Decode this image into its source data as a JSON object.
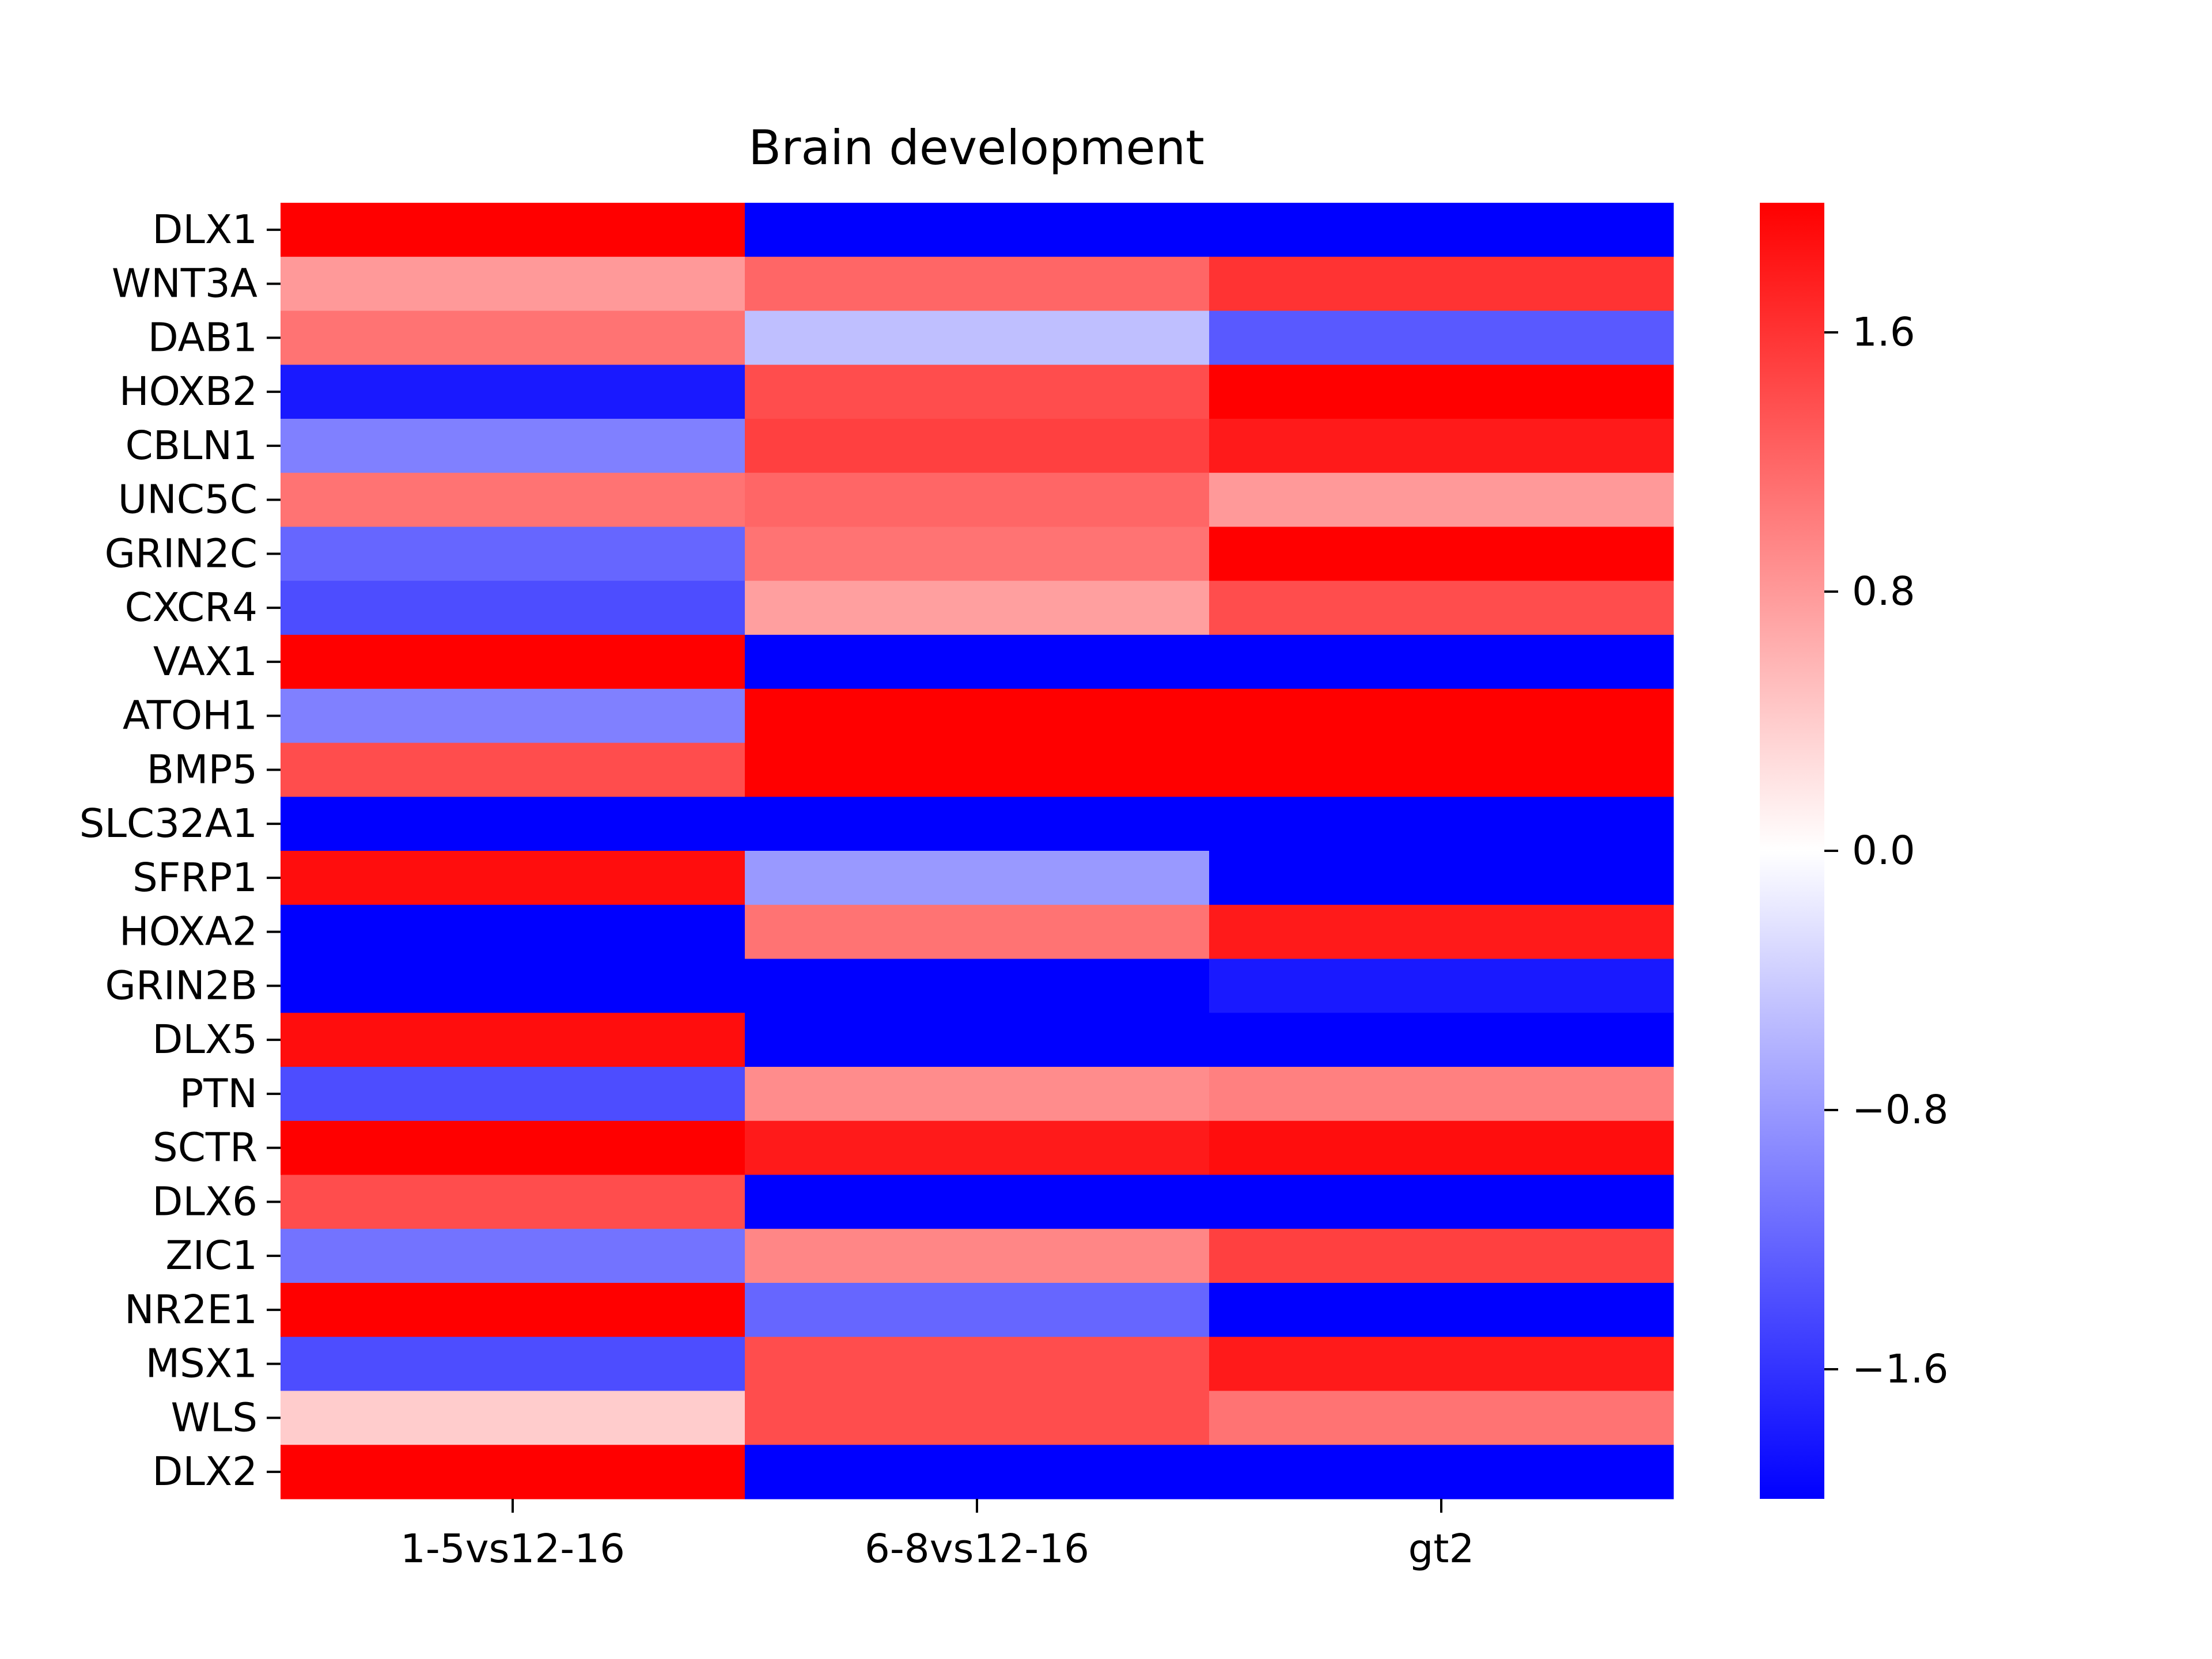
{
  "chart_data": {
    "type": "heatmap",
    "title": "Brain development",
    "xlabel": "",
    "ylabel": "",
    "columns": [
      "1-5vs12-16",
      "6-8vs12-16",
      "gt2"
    ],
    "rows": [
      "DLX1",
      "WNT3A",
      "DAB1",
      "HOXB2",
      "CBLN1",
      "UNC5C",
      "GRIN2C",
      "CXCR4",
      "VAX1",
      "ATOH1",
      "BMP5",
      "SLC32A1",
      "SFRP1",
      "HOXA2",
      "GRIN2B",
      "DLX5",
      "PTN",
      "SCTR",
      "DLX6",
      "ZIC1",
      "NR2E1",
      "MSX1",
      "WLS",
      "DLX2"
    ],
    "values": [
      [
        2.0,
        -2.0,
        -2.0
      ],
      [
        0.8,
        1.2,
        1.6
      ],
      [
        1.1,
        -0.5,
        -1.3
      ],
      [
        -1.8,
        1.4,
        2.0
      ],
      [
        -1.0,
        1.5,
        1.8
      ],
      [
        1.1,
        1.2,
        0.8
      ],
      [
        -1.2,
        1.1,
        2.0
      ],
      [
        -1.4,
        0.75,
        1.4
      ],
      [
        2.0,
        -2.0,
        -2.0
      ],
      [
        -1.0,
        2.0,
        2.0
      ],
      [
        1.4,
        2.0,
        2.0
      ],
      [
        -2.0,
        -2.0,
        -2.0
      ],
      [
        1.9,
        -0.8,
        -2.0
      ],
      [
        -2.0,
        1.1,
        1.8
      ],
      [
        -2.0,
        -2.0,
        -1.8
      ],
      [
        1.9,
        -2.0,
        -2.0
      ],
      [
        -1.4,
        0.9,
        1.0
      ],
      [
        2.0,
        1.8,
        1.9
      ],
      [
        1.4,
        -2.0,
        -2.0
      ],
      [
        -1.1,
        0.95,
        1.5
      ],
      [
        2.0,
        -1.2,
        -2.0
      ],
      [
        -1.4,
        1.4,
        1.8
      ],
      [
        0.4,
        1.4,
        1.1
      ],
      [
        2.0,
        -2.0,
        -2.0
      ]
    ],
    "colorbar": {
      "min": -2.0,
      "max": 2.0,
      "ticks": [
        1.6,
        0.8,
        0.0,
        -0.8,
        -1.6
      ],
      "tick_labels": [
        "1.6",
        "0.8",
        "0.0",
        "−0.8",
        "−1.6"
      ],
      "colormap": "bwr",
      "low_color": "#0000ff",
      "mid_color": "#ffffff",
      "high_color": "#ff0000"
    },
    "grid": false
  }
}
